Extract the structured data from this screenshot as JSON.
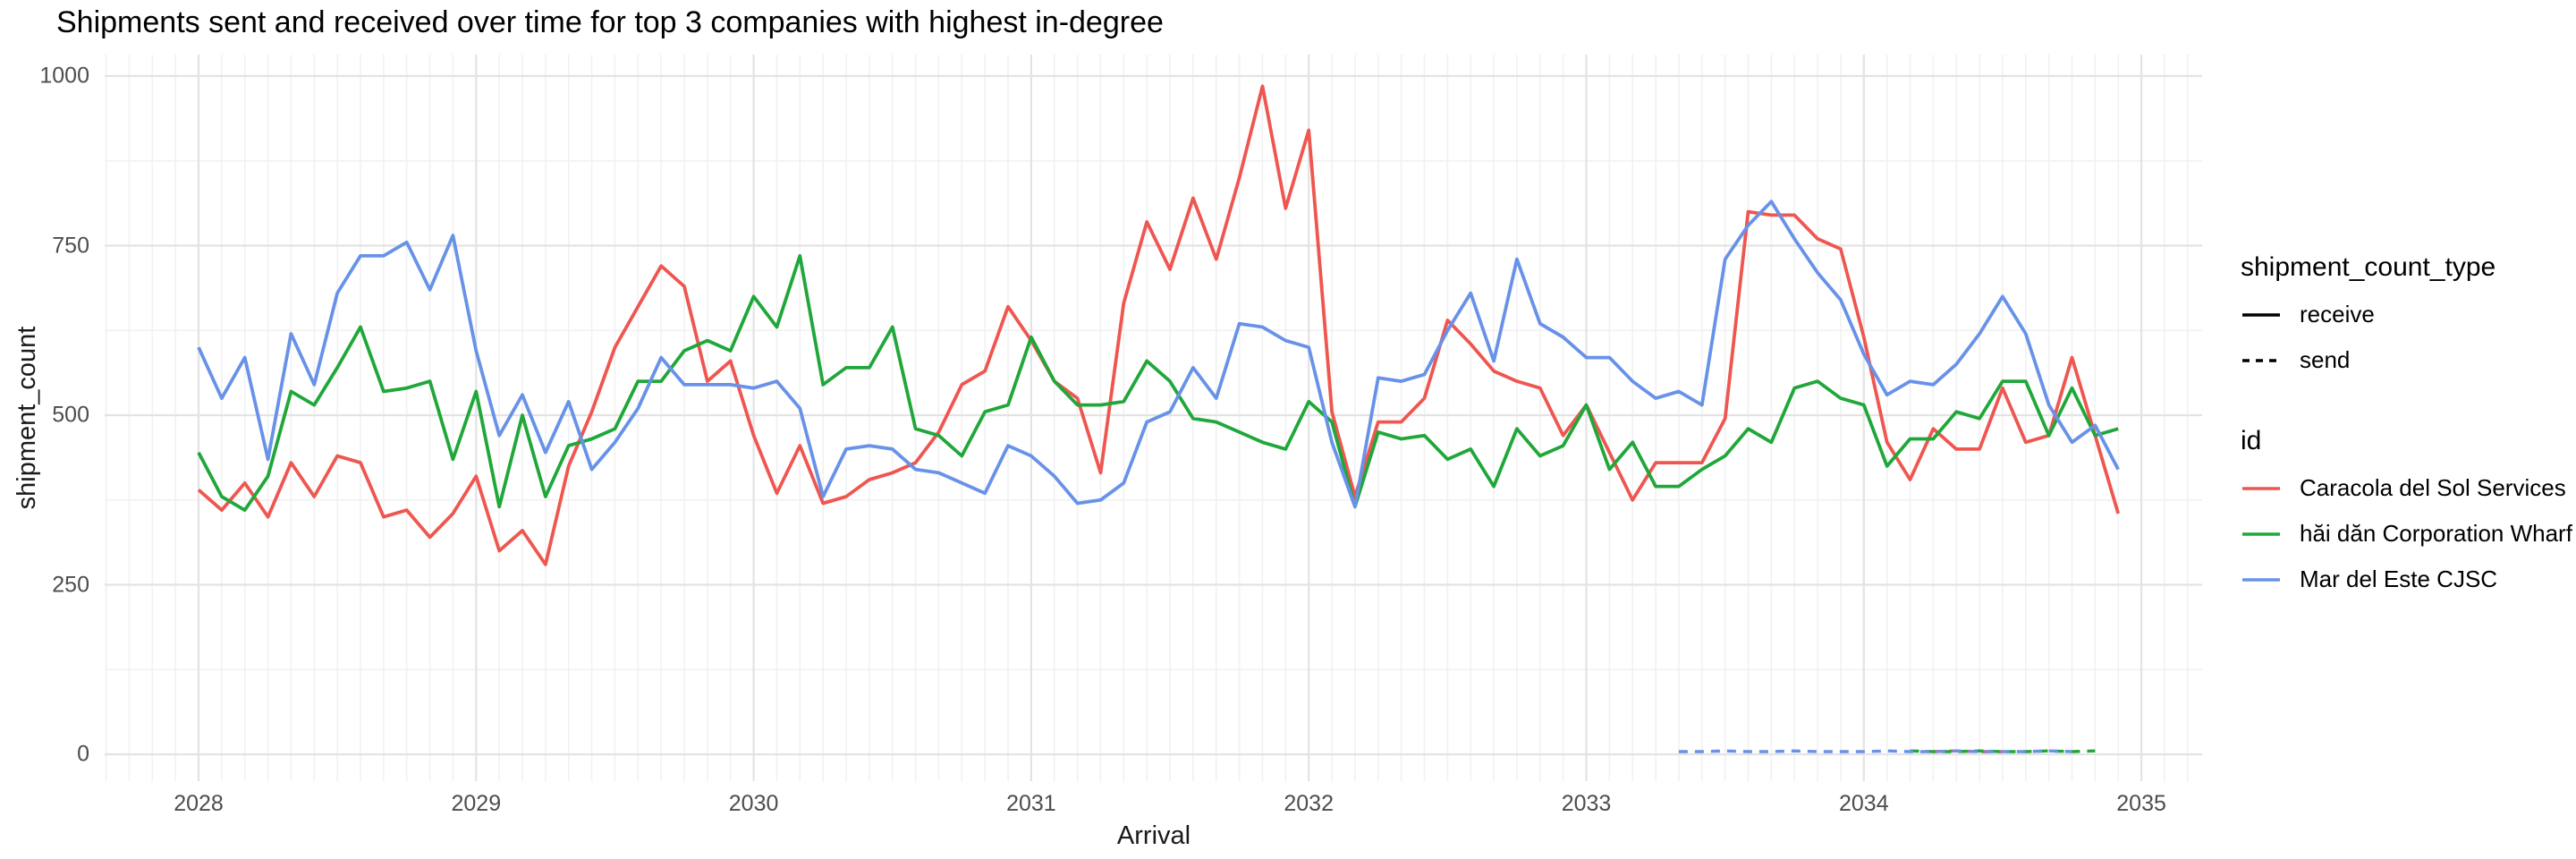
{
  "title": "Shipments sent and received over time for top 3 companies with highest in-degree",
  "axes": {
    "x": {
      "label": "Arrival",
      "ticks": [
        2028,
        2029,
        2030,
        2031,
        2032,
        2033,
        2034,
        2035
      ]
    },
    "y": {
      "label": "shipment_count",
      "ticks": [
        0,
        250,
        500,
        750,
        1000
      ]
    }
  },
  "legend": {
    "type_group": {
      "title": "shipment_count_type",
      "items": [
        {
          "label": "receive",
          "style": "solid"
        },
        {
          "label": "send",
          "style": "dashed"
        }
      ]
    },
    "id_group": {
      "title": "id",
      "items": [
        {
          "label": "Caracola del Sol Services",
          "color": "#EF5650"
        },
        {
          "label": "hăi dăn Corporation Wharf",
          "color": "#20A73A"
        },
        {
          "label": "Mar del Este CJSC",
          "color": "#6892E8"
        }
      ]
    }
  },
  "chart_data": {
    "type": "line",
    "title": "Shipments sent and received over time for top 3 companies with highest in-degree",
    "xlabel": "Arrival",
    "ylabel": "shipment_count",
    "xlim": [
      2027.67,
      2035.25
    ],
    "ylim": [
      0,
      1000
    ],
    "grid": "on",
    "legend_position": "right",
    "x_unit": "months since 2028-01, monthly points",
    "series": [
      {
        "key": "caracola-receive",
        "name": "Caracola del Sol Services",
        "shipment_count_type": "receive",
        "color": "#EF5650",
        "line_style": "solid",
        "start_month": 0,
        "values": [
          390,
          360,
          400,
          350,
          430,
          380,
          440,
          430,
          350,
          360,
          320,
          355,
          410,
          300,
          330,
          280,
          425,
          505,
          600,
          660,
          720,
          690,
          550,
          580,
          470,
          385,
          455,
          370,
          380,
          405,
          415,
          430,
          475,
          545,
          565,
          660,
          610,
          550,
          525,
          415,
          665,
          785,
          715,
          820,
          730,
          850,
          985,
          805,
          920,
          505,
          380,
          490,
          490,
          525,
          640,
          605,
          565,
          550,
          540,
          470,
          515,
          445,
          375,
          430,
          430,
          430,
          495,
          800,
          795,
          795,
          760,
          745,
          615,
          460,
          405,
          480,
          450,
          450,
          540,
          460,
          470,
          585,
          470,
          355
        ]
      },
      {
        "key": "haidan-receive",
        "name": "hăi dăn Corporation Wharf",
        "shipment_count_type": "receive",
        "color": "#20A73A",
        "line_style": "solid",
        "start_month": 0,
        "values": [
          445,
          380,
          360,
          410,
          535,
          515,
          570,
          630,
          535,
          540,
          550,
          435,
          535,
          365,
          500,
          380,
          455,
          465,
          480,
          550,
          550,
          595,
          610,
          595,
          675,
          630,
          735,
          545,
          570,
          570,
          630,
          480,
          470,
          440,
          505,
          515,
          615,
          550,
          515,
          515,
          520,
          580,
          550,
          495,
          490,
          475,
          460,
          450,
          520,
          490,
          365,
          475,
          465,
          470,
          435,
          450,
          395,
          480,
          440,
          455,
          515,
          420,
          460,
          395,
          395,
          420,
          440,
          480,
          460,
          540,
          550,
          525,
          515,
          425,
          465,
          465,
          505,
          495,
          550,
          550,
          470,
          540,
          470,
          480
        ]
      },
      {
        "key": "mardeleste-receive",
        "name": "Mar del Este CJSC",
        "shipment_count_type": "receive",
        "color": "#6892E8",
        "line_style": "solid",
        "start_month": 0,
        "values": [
          600,
          525,
          585,
          435,
          620,
          545,
          680,
          735,
          735,
          755,
          685,
          765,
          595,
          470,
          530,
          445,
          520,
          420,
          460,
          510,
          585,
          545,
          545,
          545,
          540,
          550,
          510,
          380,
          450,
          455,
          450,
          420,
          415,
          400,
          385,
          455,
          440,
          410,
          370,
          375,
          400,
          490,
          505,
          570,
          525,
          635,
          630,
          610,
          600,
          460,
          365,
          555,
          550,
          560,
          625,
          680,
          580,
          730,
          635,
          615,
          585,
          585,
          550,
          525,
          535,
          515,
          730,
          780,
          815,
          760,
          710,
          670,
          590,
          530,
          550,
          545,
          575,
          620,
          675,
          620,
          515,
          460,
          485,
          420
        ]
      },
      {
        "key": "caracola-send",
        "name": "Caracola del Sol Services",
        "shipment_count_type": "send",
        "color": "#EF5650",
        "line_style": "dashed",
        "start_month": 75,
        "values": [
          4,
          5,
          4,
          4
        ]
      },
      {
        "key": "haidan-send",
        "name": "hăi dăn Corporation Wharf",
        "shipment_count_type": "send",
        "color": "#20A73A",
        "line_style": "dashed",
        "start_month": 74,
        "values": [
          5,
          4,
          4,
          5,
          4,
          4,
          5,
          4,
          5
        ]
      },
      {
        "key": "mardeleste-send",
        "name": "Mar del Este CJSC",
        "shipment_count_type": "send",
        "color": "#6892E8",
        "line_style": "dashed",
        "start_month": 64,
        "values": [
          4,
          4,
          5,
          4,
          4,
          5,
          4,
          4,
          4,
          5,
          4,
          4,
          5,
          4,
          4,
          4,
          5,
          4
        ]
      }
    ]
  },
  "colors": {
    "grid_major": "#e3e3e3",
    "grid_minor": "#f1f1f1",
    "axis_text": "#4d4d4d",
    "legend_key_stroke": "#000000"
  }
}
